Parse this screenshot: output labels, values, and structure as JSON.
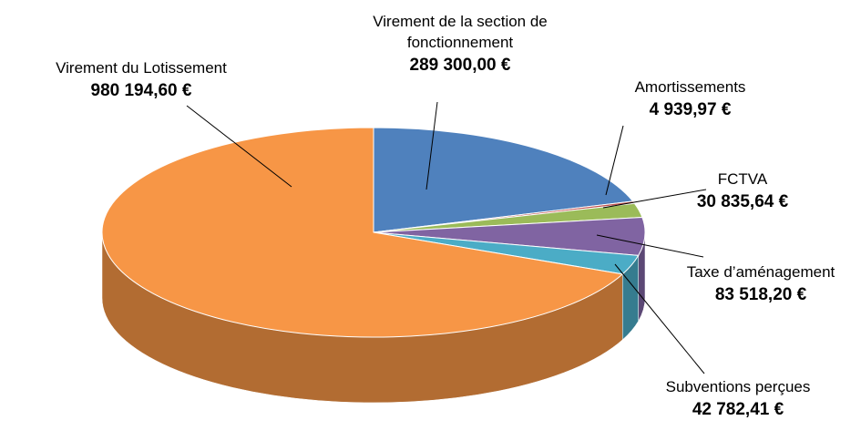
{
  "chart_data": {
    "type": "pie3d",
    "categories": [
      "Virement de la section de fonctionnement",
      "Amortissements",
      "FCTVA",
      "Taxe d’aménagement",
      "Subventions perçues",
      "Virement du Lotissement"
    ],
    "values": [
      289300.0,
      4939.97,
      30835.64,
      83518.2,
      42782.41,
      980194.6
    ],
    "value_labels": [
      "289 300,00 €",
      "4 939,97 €",
      "30 835,64 €",
      "83 518,20 €",
      "42 782,41 €",
      "980 194,60 €"
    ],
    "colors": [
      "#4f81bd",
      "#c0504d",
      "#9bbb59",
      "#8064a2",
      "#4bacc6",
      "#f79646"
    ]
  }
}
